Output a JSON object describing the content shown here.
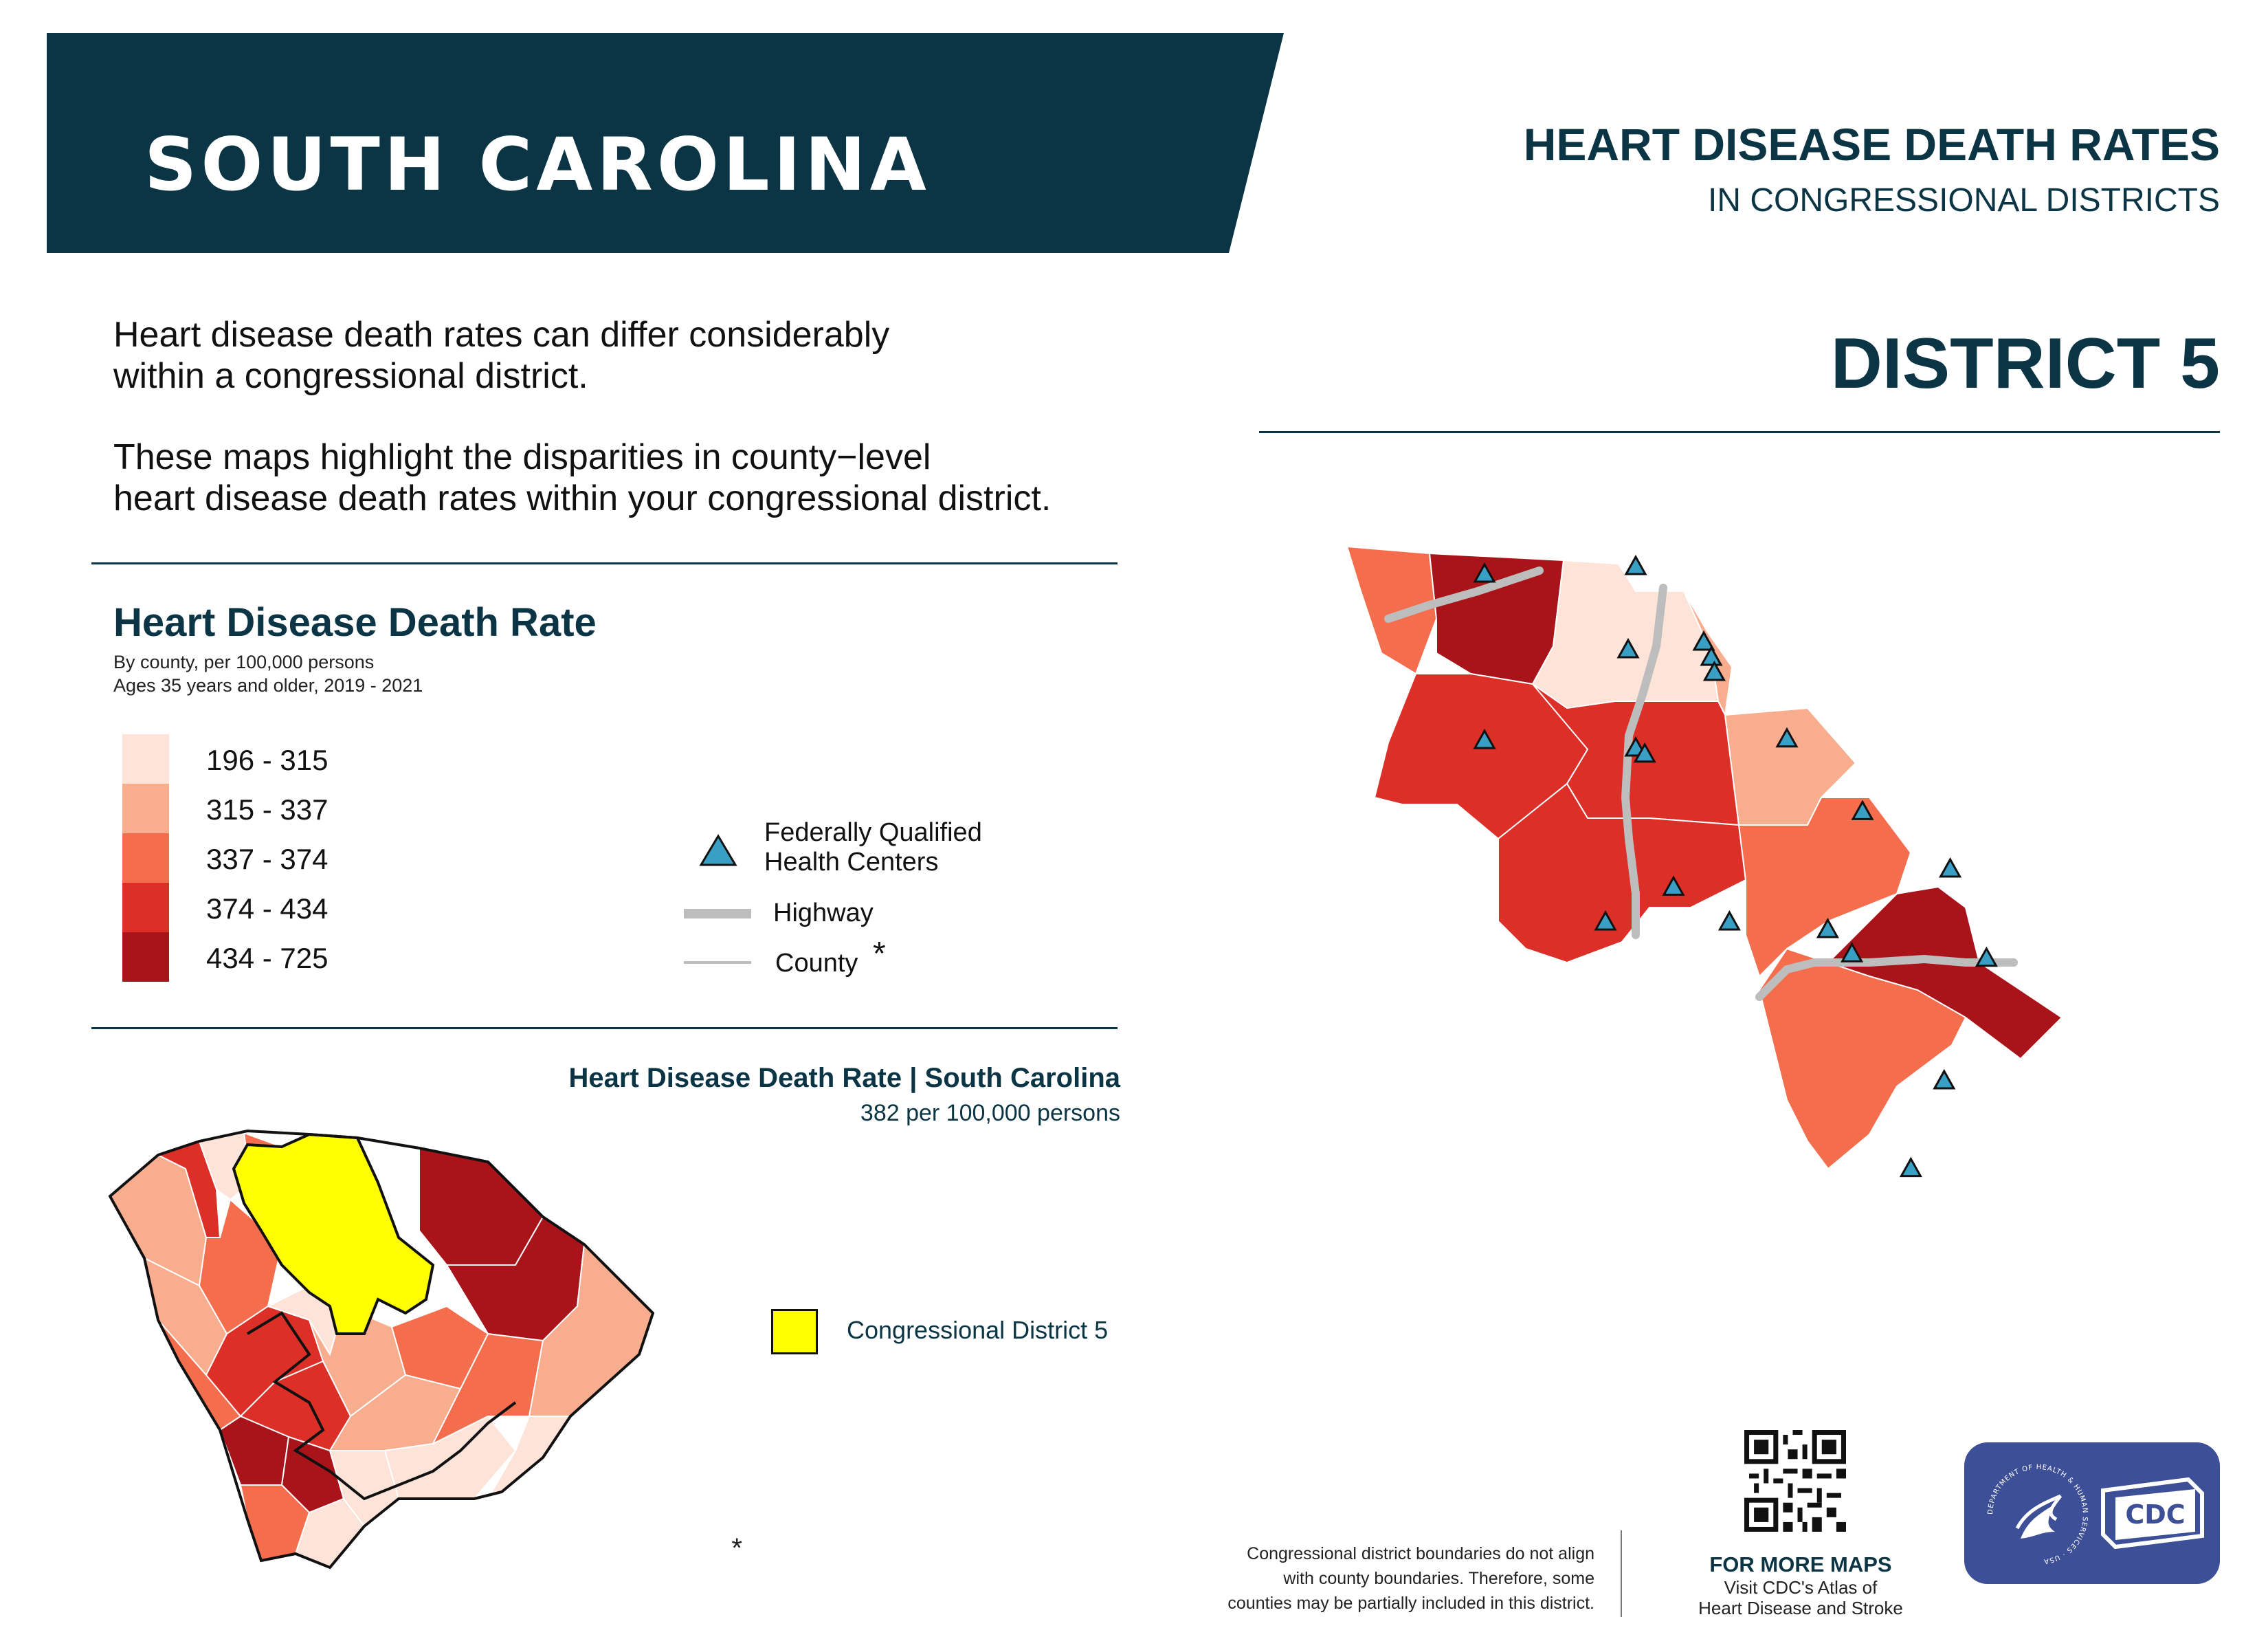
{
  "header": {
    "state_title": "SOUTH CAROLINA",
    "report_title": "HEART DISEASE DEATH RATES",
    "report_subtitle": "IN CONGRESSIONAL DISTRICTS",
    "district_label": "DISTRICT  5"
  },
  "intro": {
    "line1": "Heart disease death rates can differ considerably",
    "line2": "within a congressional district.",
    "line3": "These maps highlight the disparities in county−level",
    "line4": "heart disease death rates within your congressional district."
  },
  "legend": {
    "title": "Heart Disease Death Rate",
    "subtitle1": "By county, per 100,000 persons",
    "subtitle2": "Ages 35 years and older, 2019 - 2021",
    "bins": [
      {
        "label": "196 - 315",
        "color": "#fde3d8"
      },
      {
        "label": "315 - 337",
        "color": "#f9ad8f"
      },
      {
        "label": "337 - 374",
        "color": "#f46e4d"
      },
      {
        "label": "374 - 434",
        "color": "#dc2f27"
      },
      {
        "label": "434 - 725",
        "color": "#a81419"
      }
    ],
    "fqhc_line1": "Federally Qualified",
    "fqhc_line2": "Health Centers",
    "highway_label": "Highway",
    "county_label": "County",
    "county_note_mark": "*"
  },
  "state_summary": {
    "title": "Heart Disease Death Rate | South Carolina",
    "value": "382 per 100,000 persons",
    "district_key_label": "Congressional District 5",
    "district_key_color": "#ffff00"
  },
  "footnote": {
    "mark": "*",
    "line1": "Congressional district boundaries do not align",
    "line2": "with county boundaries. Therefore, some",
    "line3": "counties may be partially included in this district."
  },
  "more_maps": {
    "title": "FOR MORE MAPS",
    "line1": "Visit CDC's Atlas of",
    "line2": "Heart Disease and Stroke"
  },
  "logos": {
    "hhs_text": "DEPARTMENT OF HEALTH & HUMAN SERVICES · USA",
    "cdc_text": "CDC",
    "logo_bg": "#3d4f96"
  },
  "colors": {
    "navy": "#0b3545",
    "fqhc": "#3a9fc4",
    "highway": "#bdbdbd"
  }
}
